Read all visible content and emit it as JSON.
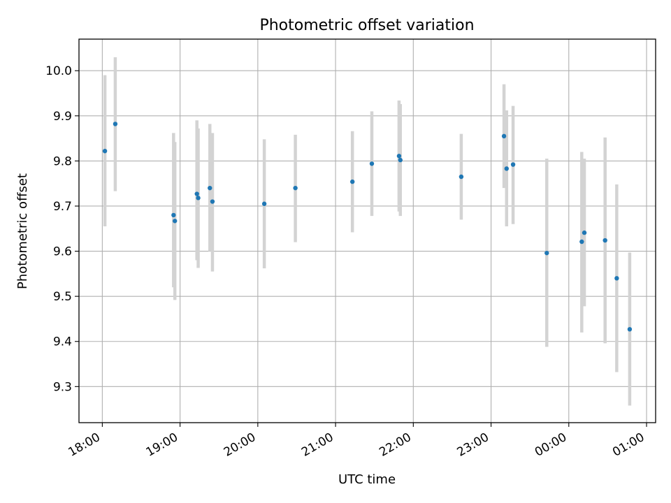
{
  "chart_data": {
    "type": "scatter",
    "title": "Photometric offset variation",
    "xlabel": "UTC time",
    "ylabel": "Photometric offset",
    "x_ticks": [
      "18:00",
      "19:00",
      "20:00",
      "21:00",
      "22:00",
      "23:00",
      "00:00",
      "01:00"
    ],
    "y_ticks": [
      "9.3",
      "9.4",
      "9.5",
      "9.6",
      "9.7",
      "9.8",
      "9.9",
      "10.0"
    ],
    "xlim": [
      "17:42",
      "01:07"
    ],
    "ylim": [
      9.22,
      10.07
    ],
    "grid": true,
    "marker_color": "#1f77b4",
    "errorbar_color": "#d3d3d3",
    "points": [
      {
        "time": "18:02",
        "y": 9.822,
        "lo": 9.655,
        "hi": 9.99
      },
      {
        "time": "18:10",
        "y": 9.882,
        "lo": 9.733,
        "hi": 10.03
      },
      {
        "time": "18:55",
        "y": 9.68,
        "lo": 9.52,
        "hi": 9.862
      },
      {
        "time": "18:56",
        "y": 9.667,
        "lo": 9.492,
        "hi": 9.842
      },
      {
        "time": "19:13",
        "y": 9.727,
        "lo": 9.58,
        "hi": 9.89
      },
      {
        "time": "19:14",
        "y": 9.718,
        "lo": 9.563,
        "hi": 9.872
      },
      {
        "time": "19:23",
        "y": 9.74,
        "lo": 9.6,
        "hi": 9.882
      },
      {
        "time": "19:25",
        "y": 9.71,
        "lo": 9.555,
        "hi": 9.862
      },
      {
        "time": "20:05",
        "y": 9.705,
        "lo": 9.562,
        "hi": 9.848
      },
      {
        "time": "20:29",
        "y": 9.74,
        "lo": 9.62,
        "hi": 9.858
      },
      {
        "time": "21:13",
        "y": 9.754,
        "lo": 9.642,
        "hi": 9.866
      },
      {
        "time": "21:28",
        "y": 9.794,
        "lo": 9.678,
        "hi": 9.91
      },
      {
        "time": "21:49",
        "y": 9.811,
        "lo": 9.688,
        "hi": 9.934
      },
      {
        "time": "21:50",
        "y": 9.802,
        "lo": 9.678,
        "hi": 9.926
      },
      {
        "time": "22:37",
        "y": 9.765,
        "lo": 9.67,
        "hi": 9.86
      },
      {
        "time": "23:10",
        "y": 9.855,
        "lo": 9.74,
        "hi": 9.97
      },
      {
        "time": "23:12",
        "y": 9.783,
        "lo": 9.655,
        "hi": 9.912
      },
      {
        "time": "23:17",
        "y": 9.792,
        "lo": 9.66,
        "hi": 9.922
      },
      {
        "time": "23:43",
        "y": 9.596,
        "lo": 9.388,
        "hi": 9.805
      },
      {
        "time": "00:10",
        "y": 9.621,
        "lo": 9.42,
        "hi": 9.82
      },
      {
        "time": "00:12",
        "y": 9.641,
        "lo": 9.478,
        "hi": 9.805
      },
      {
        "time": "00:28",
        "y": 9.624,
        "lo": 9.396,
        "hi": 9.852
      },
      {
        "time": "00:37",
        "y": 9.54,
        "lo": 9.332,
        "hi": 9.748
      },
      {
        "time": "00:47",
        "y": 9.427,
        "lo": 9.258,
        "hi": 9.597
      }
    ]
  }
}
